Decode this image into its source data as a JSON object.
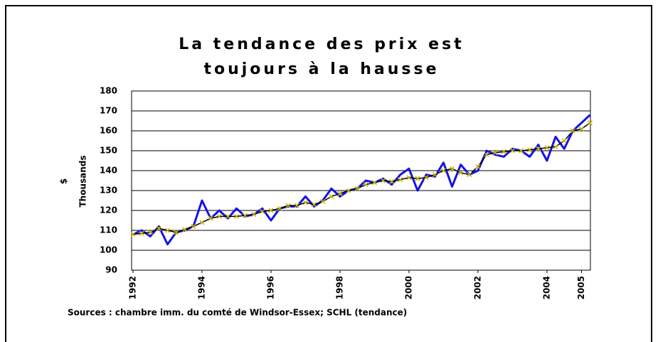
{
  "chart_data": {
    "type": "line",
    "title_lines": [
      "La tendance des prix est",
      "toujours à la hausse"
    ],
    "y_axis_labels": [
      "$",
      "Thousands"
    ],
    "source": "Sources : chambre  imm. du comté de Windsor-Essex; SCHL (tendance)",
    "x": [
      1992,
      1992.25,
      1992.5,
      1992.75,
      1993,
      1993.25,
      1993.5,
      1993.75,
      1994,
      1994.25,
      1994.5,
      1994.75,
      1995,
      1995.25,
      1995.5,
      1995.75,
      1996,
      1996.25,
      1996.5,
      1996.75,
      1997,
      1997.25,
      1997.5,
      1997.75,
      1998,
      1998.25,
      1998.5,
      1998.75,
      1999,
      1999.25,
      1999.5,
      1999.75,
      2000,
      2000.25,
      2000.5,
      2000.75,
      2001,
      2001.25,
      2001.5,
      2001.75,
      2002,
      2002.25,
      2002.5,
      2002.75,
      2003,
      2003.25,
      2003.5,
      2003.75,
      2004,
      2004.25,
      2004.5,
      2004.75,
      2005,
      2005.25
    ],
    "series": [
      {
        "color": "#1414e6",
        "values": [
          108,
          110,
          107,
          112,
          103,
          109,
          110,
          112,
          125,
          116,
          120,
          116,
          121,
          117,
          118,
          121,
          115,
          121,
          122,
          122,
          127,
          122,
          125,
          131,
          127,
          130,
          131,
          135,
          134,
          136,
          133,
          138,
          141,
          130,
          138,
          137,
          144,
          132,
          143,
          138,
          140,
          150,
          148,
          147,
          151,
          150,
          147,
          153,
          145,
          157,
          151,
          160,
          164,
          168
        ]
      },
      {
        "color": "#000000",
        "marker_color": "#c8b400",
        "values": [
          108,
          108.5,
          109,
          111,
          110,
          109,
          110.5,
          112,
          114,
          116,
          117,
          117,
          117,
          117.5,
          118,
          119.5,
          120,
          121,
          122.5,
          122.5,
          124,
          123,
          124.5,
          127,
          128.5,
          130,
          131,
          133,
          134,
          135,
          134.5,
          135.5,
          136.5,
          136,
          136.5,
          138,
          140,
          141,
          139,
          138,
          142,
          148,
          149,
          149.5,
          150,
          150,
          150.5,
          151,
          151.5,
          152,
          155,
          160,
          161,
          164
        ]
      }
    ],
    "xlim": [
      1992,
      2005.26
    ],
    "xticks": [
      1992,
      1994,
      1996,
      1998,
      2000,
      2002,
      2004,
      2005
    ],
    "ylim": [
      90,
      180
    ],
    "yticks": [
      90,
      100,
      110,
      120,
      130,
      140,
      150,
      160,
      170,
      180
    ],
    "grid": true
  }
}
